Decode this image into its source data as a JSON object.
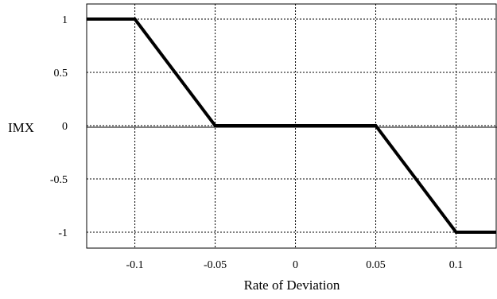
{
  "chart_data": {
    "type": "line",
    "title": "",
    "xlabel": "Rate of Deviation",
    "ylabel": "IMX",
    "xlim": [
      -0.13,
      0.125
    ],
    "ylim": [
      -1.1,
      1.1
    ],
    "x_ticks": [
      -0.1,
      -0.05,
      0,
      0.05,
      0.1
    ],
    "x_tick_labels": [
      "-0.1",
      "-0.05",
      "0",
      "0.05",
      "0.1"
    ],
    "y_ticks": [
      1,
      0.5,
      0,
      -0.5,
      -1
    ],
    "y_tick_labels": [
      "1",
      "0.5",
      "0",
      "-0.5",
      "-1"
    ],
    "grid": true,
    "grid_style": "dotted",
    "series": [
      {
        "color": "#000000",
        "x": [
          -0.13,
          -0.1,
          -0.05,
          0.05,
          0.1,
          0.125
        ],
        "y": [
          1,
          1,
          0,
          0,
          -1,
          -1
        ]
      }
    ]
  }
}
